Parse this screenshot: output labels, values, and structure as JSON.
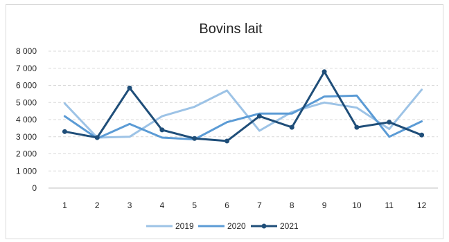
{
  "chart_data": {
    "type": "line",
    "title": "Bovins lait",
    "xlabel": "",
    "ylabel": "",
    "categories": [
      "1",
      "2",
      "3",
      "4",
      "5",
      "6",
      "7",
      "8",
      "9",
      "10",
      "11",
      "12"
    ],
    "ylim": [
      0,
      8000
    ],
    "yticks": [
      0,
      1000,
      2000,
      3000,
      4000,
      5000,
      6000,
      7000,
      8000
    ],
    "ytick_labels": [
      "0",
      "1 000",
      "2 000",
      "3 000",
      "4 000",
      "5 000",
      "6 000",
      "7 000",
      "8 000"
    ],
    "grid": true,
    "legend_position": "bottom",
    "series": [
      {
        "name": "2019",
        "color": "#9dc3e6",
        "markers": false,
        "values": [
          4950,
          2950,
          3000,
          4200,
          4750,
          5700,
          3350,
          4450,
          5000,
          4700,
          3450,
          5750
        ]
      },
      {
        "name": "2020",
        "color": "#5b9bd5",
        "markers": false,
        "values": [
          4200,
          2900,
          3750,
          2950,
          2850,
          3850,
          4350,
          4350,
          5350,
          5400,
          3000,
          3900
        ]
      },
      {
        "name": "2021",
        "color": "#1f4e79",
        "markers": true,
        "values": [
          3300,
          2950,
          5850,
          3400,
          2900,
          2750,
          4200,
          3550,
          6800,
          3550,
          3850,
          3100
        ]
      }
    ]
  }
}
